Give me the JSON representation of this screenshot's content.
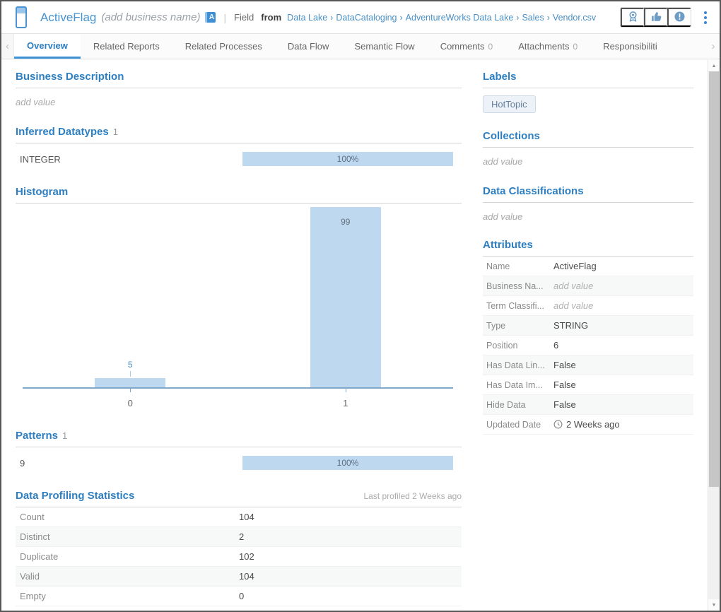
{
  "colors": {
    "accent_blue": "#2d7fc1",
    "title_blue": "#4593cf",
    "link_blue": "#4a90c6",
    "active_tab_underline": "#3e94d8",
    "bar_fill": "#bdd8ef",
    "axis_blue": "#7fa8ca",
    "row_alt_bg": "#f7f8f8",
    "chip_bg": "#edf2f8"
  },
  "header": {
    "title": "ActiveFlag",
    "business_name_placeholder": "(add business name)",
    "auto_badge": "A",
    "divider": "|",
    "type_label": "Field",
    "from_label": "from",
    "breadcrumb": {
      "separator": "›",
      "items": [
        "Data Lake",
        "DataCataloging",
        "AdventureWorks Data Lake",
        "Sales",
        "Vendor.csv"
      ]
    },
    "action_icons": [
      "certify-icon",
      "thumbs-up-icon",
      "alert-icon",
      "more-menu-icon"
    ]
  },
  "tabs": {
    "active": "Overview",
    "items": [
      {
        "label": "Overview",
        "count": ""
      },
      {
        "label": "Related Reports",
        "count": ""
      },
      {
        "label": "Related Processes",
        "count": ""
      },
      {
        "label": "Data Flow",
        "count": ""
      },
      {
        "label": "Semantic Flow",
        "count": ""
      },
      {
        "label": "Comments",
        "count": "0"
      },
      {
        "label": "Attachments",
        "count": "0"
      },
      {
        "label": "Responsibiliti",
        "count": ""
      }
    ]
  },
  "sections": {
    "business_description": {
      "title": "Business Description",
      "placeholder": "add value"
    },
    "inferred_datatypes": {
      "title": "Inferred Datatypes",
      "count": "1",
      "rows": [
        {
          "label": "INTEGER",
          "percent": "100%",
          "value": 100
        }
      ]
    },
    "histogram": {
      "title": "Histogram"
    },
    "patterns": {
      "title": "Patterns",
      "count": "1",
      "rows": [
        {
          "label": "9",
          "percent": "100%",
          "value": 100
        }
      ]
    },
    "profiling": {
      "title": "Data Profiling Statistics",
      "last_profiled": "Last profiled 2 Weeks ago",
      "rows": [
        [
          "Count",
          "104"
        ],
        [
          "Distinct",
          "2"
        ],
        [
          "Duplicate",
          "102"
        ],
        [
          "Valid",
          "104"
        ],
        [
          "Empty",
          "0"
        ]
      ]
    },
    "labels": {
      "title": "Labels",
      "chips": [
        "HotTopic"
      ]
    },
    "collections": {
      "title": "Collections",
      "placeholder": "add value"
    },
    "data_classifications": {
      "title": "Data Classifications",
      "placeholder": "add value"
    },
    "attributes": {
      "title": "Attributes",
      "rows": [
        {
          "label": "Name",
          "value": "ActiveFlag"
        },
        {
          "label": "Business Na...",
          "value": "add value"
        },
        {
          "label": "Term Classifi...",
          "value": "add value"
        },
        {
          "label": "Type",
          "value": "STRING"
        },
        {
          "label": "Position",
          "value": "6"
        },
        {
          "label": "Has Data Lin...",
          "value": "False"
        },
        {
          "label": "Has Data Im...",
          "value": "False"
        },
        {
          "label": "Hide Data",
          "value": "False"
        },
        {
          "label": "Updated Date",
          "value": "2 Weeks ago"
        }
      ]
    }
  },
  "chart_data": {
    "type": "bar",
    "title": "Histogram",
    "categories": [
      "0",
      "1"
    ],
    "values": [
      5,
      99
    ],
    "bar_labels": [
      "5",
      "99"
    ],
    "xlabel": "",
    "ylabel": "",
    "ylim": [
      0,
      99
    ],
    "grid": false,
    "legend": false
  }
}
